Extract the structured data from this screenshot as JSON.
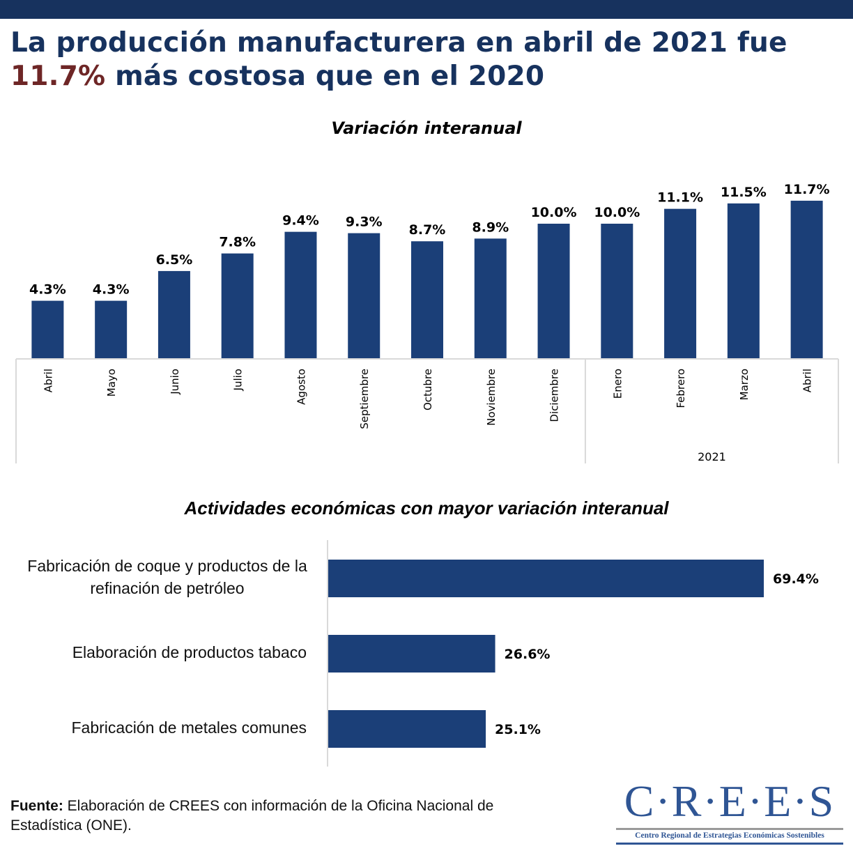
{
  "headline": {
    "line1": "La producción manufacturera en abril de 2021 fue",
    "accent": "11.7%",
    "line2_rest": " más costosa que en el 2020"
  },
  "colors": {
    "band": "#17325e",
    "headline": "#17325e",
    "accent": "#6e2626",
    "bar": "#1b3f78",
    "axis": "#d9d9d9",
    "logo": "#2f5594"
  },
  "chart_data": [
    {
      "type": "bar",
      "title": "Variación interanual",
      "categories": [
        "Abril",
        "Mayo",
        "Junio",
        "Julio",
        "Agosto",
        "Septiembre",
        "Octubre",
        "Noviembre",
        "Diciembre",
        "Enero",
        "Febrero",
        "Marzo",
        "Abril"
      ],
      "values": [
        4.3,
        4.3,
        6.5,
        7.8,
        9.4,
        9.3,
        8.7,
        8.9,
        10.0,
        10.0,
        11.1,
        11.5,
        11.7
      ],
      "data_labels": [
        "4.3%",
        "4.3%",
        "6.5%",
        "7.8%",
        "9.4%",
        "9.3%",
        "8.7%",
        "8.9%",
        "10.0%",
        "10.0%",
        "11.1%",
        "11.5%",
        "11.7%"
      ],
      "group_labels": [
        {
          "label": "",
          "from": 0,
          "to": 8
        },
        {
          "label": "2021",
          "from": 9,
          "to": 12
        }
      ],
      "xlabel": "",
      "ylabel": "",
      "ylim": [
        0,
        12
      ],
      "grid": false,
      "legend": "none",
      "unit": "%"
    },
    {
      "type": "bar",
      "orientation": "horizontal",
      "title": "Actividades económicas con mayor variación interanual",
      "categories": [
        "Fabricación de coque y productos de la refinación de petróleo",
        "Elaboración de productos  tabaco",
        "Fabricación de metales comunes"
      ],
      "category_lines": [
        [
          "Fabricación de coque y productos de la",
          "refinación de petróleo"
        ],
        [
          "Elaboración de productos  tabaco"
        ],
        [
          "Fabricación de metales comunes"
        ]
      ],
      "values": [
        69.4,
        26.6,
        25.1
      ],
      "data_labels": [
        "69.4%",
        "26.6%",
        "25.1%"
      ],
      "xlim": [
        0,
        69.4
      ],
      "grid": false,
      "legend": "none",
      "unit": "%"
    }
  ],
  "footer": {
    "source_label": "Fuente:",
    "source_text": " Elaboración de CREES con información de la Oficina Nacional de Estadística (ONE)."
  },
  "logo": {
    "mark": "C·R·E·E·S",
    "subtitle": "Centro Regional de Estrategias Económicas Sostenibles"
  }
}
